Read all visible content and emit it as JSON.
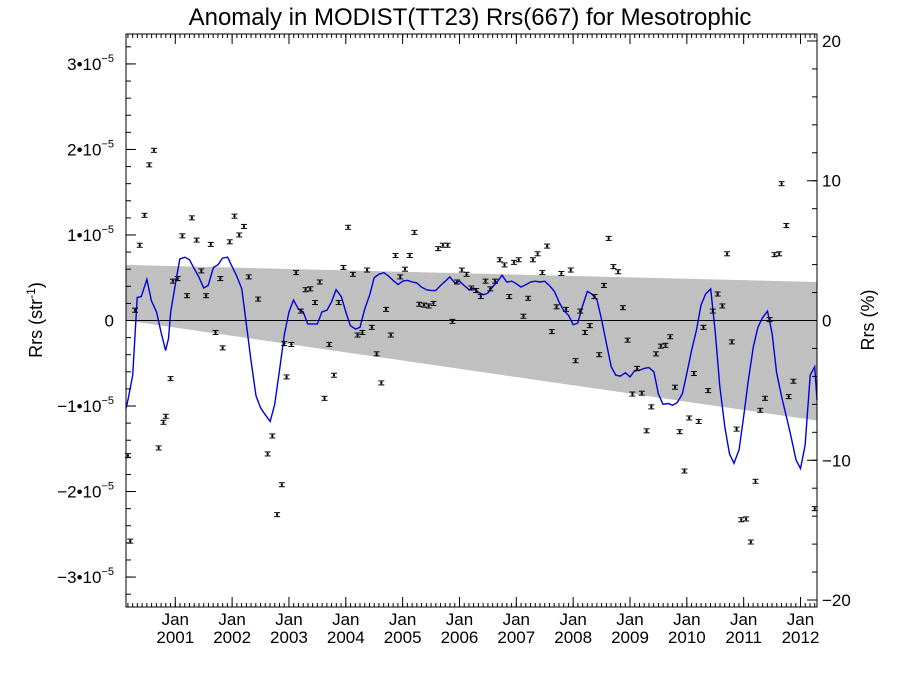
{
  "chart_data": {
    "type": "scatter",
    "title": "Anomaly in MODIST(TT23) Rrs(667) for Mesotrophic",
    "ylabel_left": "Rrs (str",
    "ylabel_left_sup": "-1",
    "ylabel_left_end": ")",
    "ylabel_right": "Rrs (%)",
    "xlim": [
      2000.133,
      2012.29
    ],
    "ylim_left": [
      -3.35e-05,
      3.35e-05
    ],
    "ylim_right": [
      -20.5,
      20.5
    ],
    "left_ticks": [
      {
        "value": 3e-05,
        "mant": "3•10",
        "exp": "−5"
      },
      {
        "value": 2e-05,
        "mant": "2•10",
        "exp": "−5"
      },
      {
        "value": 1e-05,
        "mant": "1•10",
        "exp": "−5"
      },
      {
        "value": 0,
        "mant": "0",
        "exp": ""
      },
      {
        "value": -1e-05,
        "mant": "−1•10",
        "exp": "−5"
      },
      {
        "value": -2e-05,
        "mant": "−2•10",
        "exp": "−5"
      },
      {
        "value": -3e-05,
        "mant": "−3•10",
        "exp": "−5"
      }
    ],
    "right_ticks": [
      {
        "value": 20,
        "label": "20"
      },
      {
        "value": 10,
        "label": "10"
      },
      {
        "value": 0,
        "label": "0"
      },
      {
        "value": -10,
        "label": "−10"
      },
      {
        "value": -20,
        "label": "−20"
      }
    ],
    "x_ticks": [
      {
        "value": 2001,
        "label1": "Jan",
        "label2": "2001"
      },
      {
        "value": 2002,
        "label1": "Jan",
        "label2": "2002"
      },
      {
        "value": 2003,
        "label1": "Jan",
        "label2": "2003"
      },
      {
        "value": 2004,
        "label1": "Jan",
        "label2": "2004"
      },
      {
        "value": 2005,
        "label1": "Jan",
        "label2": "2005"
      },
      {
        "value": 2006,
        "label1": "Jan",
        "label2": "2006"
      },
      {
        "value": 2007,
        "label1": "Jan",
        "label2": "2007"
      },
      {
        "value": 2008,
        "label1": "Jan",
        "label2": "2008"
      },
      {
        "value": 2009,
        "label1": "Jan",
        "label2": "2009"
      },
      {
        "value": 2010,
        "label1": "Jan",
        "label2": "2010"
      },
      {
        "value": 2011,
        "label1": "Jan",
        "label2": "2011"
      },
      {
        "value": 2012,
        "label1": "Jan",
        "label2": "2012"
      }
    ],
    "uncertainty_band": {
      "upper": [
        [
          2000.133,
          6.5e-06
        ],
        [
          2012.29,
          4.5e-06
        ]
      ],
      "lower": [
        [
          2000.133,
          0
        ],
        [
          2012.29,
          -1.17e-05
        ]
      ],
      "color": "#c0c0c0"
    },
    "zero_line": true,
    "colors": {
      "smooth": "#0000dd",
      "points": "#000000",
      "band": "#c0c0c0"
    },
    "points": [
      [
        2000.167,
        -1.58e-05
      ],
      [
        2000.208,
        -2.58e-05
      ],
      [
        2000.292,
        1.2e-06
      ],
      [
        2000.375,
        8.8e-06
      ],
      [
        2000.458,
        1.23e-05
      ],
      [
        2000.542,
        1.82e-05
      ],
      [
        2000.625,
        1.99e-05
      ],
      [
        2000.708,
        -1.49e-05
      ],
      [
        2000.792,
        -1.19e-05
      ],
      [
        2000.833,
        -1.12e-05
      ],
      [
        2000.917,
        -6.8e-06
      ],
      [
        2000.958,
        4.6e-06
      ],
      [
        2001.042,
        4.9e-06
      ],
      [
        2001.125,
        9.9e-06
      ],
      [
        2001.208,
        2.9e-06
      ],
      [
        2001.292,
        1.2e-05
      ],
      [
        2001.375,
        9.4e-06
      ],
      [
        2001.458,
        5.8e-06
      ],
      [
        2001.542,
        2.9e-06
      ],
      [
        2001.625,
        8.9e-06
      ],
      [
        2001.708,
        -1.4e-06
      ],
      [
        2001.792,
        4.9e-06
      ],
      [
        2001.833,
        -3.2e-06
      ],
      [
        2001.958,
        9.2e-06
      ],
      [
        2002.042,
        1.22e-05
      ],
      [
        2002.125,
        1e-05
      ],
      [
        2002.208,
        1.1e-05
      ],
      [
        2002.292,
        5.1e-06
      ],
      [
        2002.458,
        2.5e-06
      ],
      [
        2002.625,
        -1.56e-05
      ],
      [
        2002.708,
        -1.35e-05
      ],
      [
        2002.792,
        -2.27e-05
      ],
      [
        2002.875,
        -1.92e-05
      ],
      [
        2002.917,
        -2.7e-06
      ],
      [
        2002.958,
        -6.6e-06
      ],
      [
        2003.042,
        -2.8e-06
      ],
      [
        2003.125,
        5.6e-06
      ],
      [
        2003.208,
        1.1e-06
      ],
      [
        2003.292,
        3.6e-06
      ],
      [
        2003.375,
        3.7e-06
      ],
      [
        2003.458,
        2.1e-06
      ],
      [
        2003.542,
        4.5e-06
      ],
      [
        2003.625,
        -9.1e-06
      ],
      [
        2003.708,
        -2.8e-06
      ],
      [
        2003.792,
        -6.4e-06
      ],
      [
        2003.875,
        2.1e-06
      ],
      [
        2003.958,
        6.2e-06
      ],
      [
        2004.042,
        1.09e-05
      ],
      [
        2004.125,
        5.4e-06
      ],
      [
        2004.208,
        -1.7e-06
      ],
      [
        2004.292,
        -1.4e-06
      ],
      [
        2004.375,
        5.9e-06
      ],
      [
        2004.458,
        -8e-07
      ],
      [
        2004.542,
        -3.9e-06
      ],
      [
        2004.625,
        -7.3e-06
      ],
      [
        2004.708,
        1.3e-06
      ],
      [
        2004.792,
        -1.7e-06
      ],
      [
        2004.875,
        7.6e-06
      ],
      [
        2004.958,
        5.1e-06
      ],
      [
        2005.042,
        6e-06
      ],
      [
        2005.125,
        7.6e-06
      ],
      [
        2005.208,
        1.03e-05
      ],
      [
        2005.292,
        1.9e-06
      ],
      [
        2005.375,
        1.8e-06
      ],
      [
        2005.458,
        1.7e-06
      ],
      [
        2005.542,
        2e-06
      ],
      [
        2005.625,
        8.4e-06
      ],
      [
        2005.708,
        8.8e-06
      ],
      [
        2005.792,
        8.8e-06
      ],
      [
        2005.875,
        -1e-07
      ],
      [
        2005.958,
        4.5e-06
      ],
      [
        2006.042,
        5.9e-06
      ],
      [
        2006.125,
        5.4e-06
      ],
      [
        2006.208,
        3.8e-06
      ],
      [
        2006.292,
        3.5e-06
      ],
      [
        2006.375,
        2.8e-06
      ],
      [
        2006.458,
        4.6e-06
      ],
      [
        2006.542,
        3.7e-06
      ],
      [
        2006.625,
        4.6e-06
      ],
      [
        2006.708,
        7.1e-06
      ],
      [
        2006.792,
        6.5e-06
      ],
      [
        2006.875,
        2.8e-06
      ],
      [
        2006.958,
        6.8e-06
      ],
      [
        2007.042,
        7.1e-06
      ],
      [
        2007.125,
        5e-07
      ],
      [
        2007.208,
        2.6e-06
      ],
      [
        2007.292,
        7.1e-06
      ],
      [
        2007.375,
        7.8e-06
      ],
      [
        2007.458,
        5.6e-06
      ],
      [
        2007.542,
        8.7e-06
      ],
      [
        2007.625,
        -1.3e-06
      ],
      [
        2007.708,
        1.6e-06
      ],
      [
        2007.792,
        5.5e-06
      ],
      [
        2007.875,
        1.3e-06
      ],
      [
        2007.958,
        5.9e-06
      ],
      [
        2008.042,
        -4.7e-06
      ],
      [
        2008.125,
        1.1e-06
      ],
      [
        2008.208,
        -1.4e-06
      ],
      [
        2008.292,
        -6e-07
      ],
      [
        2008.375,
        2.8e-06
      ],
      [
        2008.458,
        -4e-06
      ],
      [
        2008.542,
        4.1e-06
      ],
      [
        2008.625,
        9.6e-06
      ],
      [
        2008.708,
        6.3e-06
      ],
      [
        2008.792,
        5.7e-06
      ],
      [
        2008.875,
        1.5e-06
      ],
      [
        2008.958,
        -2.3e-06
      ],
      [
        2009.042,
        -8.6e-06
      ],
      [
        2009.125,
        -5.6e-06
      ],
      [
        2009.208,
        -8.5e-06
      ],
      [
        2009.292,
        -1.29e-05
      ],
      [
        2009.375,
        -1.01e-05
      ],
      [
        2009.458,
        -3.9e-06
      ],
      [
        2009.542,
        -3e-06
      ],
      [
        2009.625,
        -2.9e-06
      ],
      [
        2009.708,
        -1.9e-06
      ],
      [
        2009.792,
        -7.8e-06
      ],
      [
        2009.875,
        -1.3e-05
      ],
      [
        2009.958,
        -1.76e-05
      ],
      [
        2010.042,
        -1.14e-05
      ],
      [
        2010.125,
        -6.2e-06
      ],
      [
        2010.208,
        -1.18e-05
      ],
      [
        2010.292,
        -8e-07
      ],
      [
        2010.375,
        -8.2e-06
      ],
      [
        2010.458,
        1.1e-06
      ],
      [
        2010.542,
        3.1e-06
      ],
      [
        2010.625,
        1.7e-06
      ],
      [
        2010.708,
        7.8e-06
      ],
      [
        2010.792,
        -2.5e-06
      ],
      [
        2010.875,
        -1.27e-05
      ],
      [
        2010.958,
        -2.33e-05
      ],
      [
        2011.042,
        -2.32e-05
      ],
      [
        2011.125,
        -2.59e-05
      ],
      [
        2011.208,
        -1.88e-05
      ],
      [
        2011.292,
        -1.05e-05
      ],
      [
        2011.375,
        -9.1e-06
      ],
      [
        2011.458,
        1e-07
      ],
      [
        2011.542,
        7.7e-06
      ],
      [
        2011.625,
        7.8e-06
      ],
      [
        2011.667,
        1.6e-05
      ],
      [
        2011.75,
        1.11e-05
      ],
      [
        2011.792,
        -8.9e-06
      ],
      [
        2011.875,
        -7.1e-06
      ],
      [
        2012.25,
        -2.2e-05
      ]
    ],
    "smooth_line": [
      [
        2000.133,
        -1.03e-05
      ],
      [
        2000.17,
        -9.2e-06
      ],
      [
        2000.25,
        -6.4e-06
      ],
      [
        2000.33,
        2.7e-06
      ],
      [
        2000.4,
        2.8e-06
      ],
      [
        2000.5,
        4.8e-06
      ],
      [
        2000.58,
        2.3e-06
      ],
      [
        2000.67,
        1e-06
      ],
      [
        2000.75,
        -1.4e-06
      ],
      [
        2000.83,
        -3.5e-06
      ],
      [
        2000.88,
        -2.1e-06
      ],
      [
        2000.92,
        1e-06
      ],
      [
        2001.0,
        4.2e-06
      ],
      [
        2001.08,
        7.2e-06
      ],
      [
        2001.17,
        7.4e-06
      ],
      [
        2001.25,
        7.1e-06
      ],
      [
        2001.33,
        6.1e-06
      ],
      [
        2001.42,
        5e-06
      ],
      [
        2001.5,
        3.8e-06
      ],
      [
        2001.58,
        4.1e-06
      ],
      [
        2001.67,
        6.2e-06
      ],
      [
        2001.75,
        6.5e-06
      ],
      [
        2001.83,
        7.3e-06
      ],
      [
        2001.92,
        7.4e-06
      ],
      [
        2002.0,
        6.3e-06
      ],
      [
        2002.08,
        5.2e-06
      ],
      [
        2002.17,
        3.7e-06
      ],
      [
        2002.25,
        -4e-07
      ],
      [
        2002.33,
        -4.6e-06
      ],
      [
        2002.42,
        -8.8e-06
      ],
      [
        2002.5,
        -1.02e-05
      ],
      [
        2002.58,
        -1.1e-05
      ],
      [
        2002.67,
        -1.18e-05
      ],
      [
        2002.75,
        -9.8e-06
      ],
      [
        2002.83,
        -6e-06
      ],
      [
        2002.92,
        -1.6e-06
      ],
      [
        2003.0,
        1e-06
      ],
      [
        2003.08,
        2.4e-06
      ],
      [
        2003.17,
        1.3e-06
      ],
      [
        2003.25,
        1e-06
      ],
      [
        2003.33,
        -4e-07
      ],
      [
        2003.42,
        -4e-07
      ],
      [
        2003.5,
        -4e-07
      ],
      [
        2003.58,
        1e-06
      ],
      [
        2003.67,
        1.2e-06
      ],
      [
        2003.75,
        2.2e-06
      ],
      [
        2003.83,
        3.6e-06
      ],
      [
        2003.92,
        2.8e-06
      ],
      [
        2004.0,
        1e-06
      ],
      [
        2004.08,
        -6e-07
      ],
      [
        2004.17,
        -1e-06
      ],
      [
        2004.25,
        -8e-07
      ],
      [
        2004.33,
        1.3e-06
      ],
      [
        2004.42,
        3e-06
      ],
      [
        2004.5,
        5e-06
      ],
      [
        2004.58,
        5.4e-06
      ],
      [
        2004.67,
        5.6e-06
      ],
      [
        2004.75,
        5.2e-06
      ],
      [
        2004.83,
        4.7e-06
      ],
      [
        2004.92,
        4.2e-06
      ],
      [
        2005.0,
        4.6e-06
      ],
      [
        2005.08,
        4.7e-06
      ],
      [
        2005.17,
        4.5e-06
      ],
      [
        2005.25,
        4.4e-06
      ],
      [
        2005.33,
        3.9e-06
      ],
      [
        2005.42,
        3.6e-06
      ],
      [
        2005.5,
        3.5e-06
      ],
      [
        2005.58,
        3.5e-06
      ],
      [
        2005.67,
        4.1e-06
      ],
      [
        2005.75,
        4.6e-06
      ],
      [
        2005.83,
        5.1e-06
      ],
      [
        2005.92,
        4.4e-06
      ],
      [
        2006.0,
        4.6e-06
      ],
      [
        2006.08,
        4.1e-06
      ],
      [
        2006.17,
        3.6e-06
      ],
      [
        2006.25,
        3.8e-06
      ],
      [
        2006.33,
        3.3e-06
      ],
      [
        2006.42,
        3e-06
      ],
      [
        2006.5,
        3.2e-06
      ],
      [
        2006.58,
        3.9e-06
      ],
      [
        2006.67,
        4.6e-06
      ],
      [
        2006.75,
        5.3e-06
      ],
      [
        2006.83,
        4.5e-06
      ],
      [
        2006.92,
        4.6e-06
      ],
      [
        2007.0,
        4.3e-06
      ],
      [
        2007.08,
        3.9e-06
      ],
      [
        2007.17,
        4.2e-06
      ],
      [
        2007.25,
        4.5e-06
      ],
      [
        2007.33,
        4.6e-06
      ],
      [
        2007.42,
        4.5e-06
      ],
      [
        2007.5,
        4.6e-06
      ],
      [
        2007.58,
        4.1e-06
      ],
      [
        2007.67,
        3.4e-06
      ],
      [
        2007.75,
        2.2e-06
      ],
      [
        2007.83,
        1.2e-06
      ],
      [
        2007.92,
        6e-07
      ],
      [
        2008.0,
        -5e-07
      ],
      [
        2008.08,
        -3e-07
      ],
      [
        2008.17,
        1.8e-06
      ],
      [
        2008.25,
        3.4e-06
      ],
      [
        2008.33,
        3.1e-06
      ],
      [
        2008.42,
        2.4e-06
      ],
      [
        2008.5,
        1e-07
      ],
      [
        2008.58,
        -2.5e-06
      ],
      [
        2008.67,
        -5.4e-06
      ],
      [
        2008.75,
        -6.4e-06
      ],
      [
        2008.83,
        -6.5e-06
      ],
      [
        2008.92,
        -6.1e-06
      ],
      [
        2009.0,
        -6.6e-06
      ],
      [
        2009.08,
        -5.9e-06
      ],
      [
        2009.17,
        -5.8e-06
      ],
      [
        2009.25,
        -5.6e-06
      ],
      [
        2009.33,
        -5.5e-06
      ],
      [
        2009.42,
        -6e-06
      ],
      [
        2009.5,
        -8.6e-06
      ],
      [
        2009.58,
        -9.8e-06
      ],
      [
        2009.67,
        -9.7e-06
      ],
      [
        2009.75,
        -9.9e-06
      ],
      [
        2009.83,
        -9.6e-06
      ],
      [
        2009.92,
        -8.6e-06
      ],
      [
        2010.0,
        -6.2e-06
      ],
      [
        2010.08,
        -3.6e-06
      ],
      [
        2010.17,
        -1.1e-06
      ],
      [
        2010.25,
        1.8e-06
      ],
      [
        2010.33,
        3.1e-06
      ],
      [
        2010.42,
        3.7e-06
      ],
      [
        2010.5,
        -1.4e-06
      ],
      [
        2010.58,
        -7.7e-06
      ],
      [
        2010.67,
        -1.25e-05
      ],
      [
        2010.75,
        -1.56e-05
      ],
      [
        2010.83,
        -1.67e-05
      ],
      [
        2010.92,
        -1.51e-05
      ],
      [
        2011.0,
        -1.12e-05
      ],
      [
        2011.08,
        -7.1e-06
      ],
      [
        2011.17,
        -3.1e-06
      ],
      [
        2011.25,
        -8e-07
      ],
      [
        2011.33,
        3e-07
      ],
      [
        2011.42,
        1.1e-06
      ],
      [
        2011.5,
        -1.5e-06
      ],
      [
        2011.58,
        -6.1e-06
      ],
      [
        2011.67,
        -9e-06
      ],
      [
        2011.75,
        -1.12e-05
      ],
      [
        2011.83,
        -1.35e-05
      ],
      [
        2011.92,
        -1.63e-05
      ],
      [
        2012.0,
        -1.73e-05
      ],
      [
        2012.08,
        -1.46e-05
      ],
      [
        2012.17,
        -6.4e-06
      ],
      [
        2012.25,
        -5.4e-06
      ],
      [
        2012.29,
        -9.3e-06
      ]
    ]
  }
}
